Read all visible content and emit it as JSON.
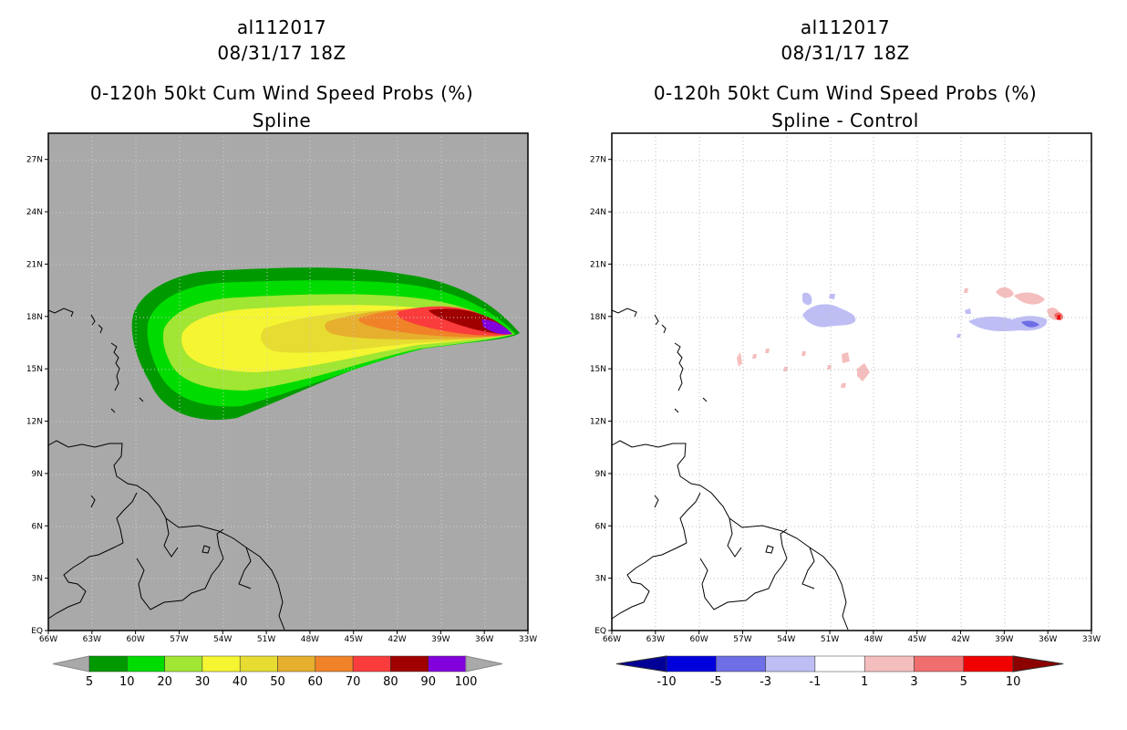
{
  "left": {
    "storm_id": "al112017",
    "datetime": "08/31/17 18Z",
    "product": "0-120h 50kt Cum Wind Speed Probs (%)",
    "subtitle": "Spline",
    "x_ticks": [
      "66W",
      "63W",
      "60W",
      "57W",
      "54W",
      "51W",
      "48W",
      "45W",
      "42W",
      "39W",
      "36W",
      "33W"
    ],
    "y_ticks": [
      "EQ",
      "3N",
      "6N",
      "9N",
      "12N",
      "15N",
      "18N",
      "21N",
      "24N",
      "27N"
    ],
    "colorbar": {
      "labels": [
        "5",
        "10",
        "20",
        "30",
        "40",
        "50",
        "60",
        "70",
        "80",
        "90",
        "100"
      ],
      "colors": [
        "#009a00",
        "#00dc00",
        "#a0e632",
        "#f5f532",
        "#e6dc32",
        "#e6af2d",
        "#f08228",
        "#fa3c3c",
        "#a00000",
        "#8200dc"
      ],
      "end_color": "#a9a9a9"
    },
    "background": "#a9a9a9"
  },
  "right": {
    "storm_id": "al112017",
    "datetime": "08/31/17 18Z",
    "product": "0-120h 50kt Cum Wind Speed Probs (%)",
    "subtitle": "Spline - Control",
    "x_ticks": [
      "66W",
      "63W",
      "60W",
      "57W",
      "54W",
      "51W",
      "48W",
      "45W",
      "42W",
      "39W",
      "36W",
      "33W"
    ],
    "y_ticks": [
      "EQ",
      "3N",
      "6N",
      "9N",
      "12N",
      "15N",
      "18N",
      "21N",
      "24N",
      "27N"
    ],
    "colorbar": {
      "labels": [
        "-10",
        "-5",
        "-3",
        "-1",
        "1",
        "3",
        "5",
        "10"
      ],
      "colors": [
        "#0000dc",
        "#6e6ee6",
        "#bebef5",
        "#ffffff",
        "#f5bebe",
        "#f06e6e",
        "#f00000"
      ],
      "end_low": "#000096",
      "end_high": "#8c0000"
    }
  }
}
